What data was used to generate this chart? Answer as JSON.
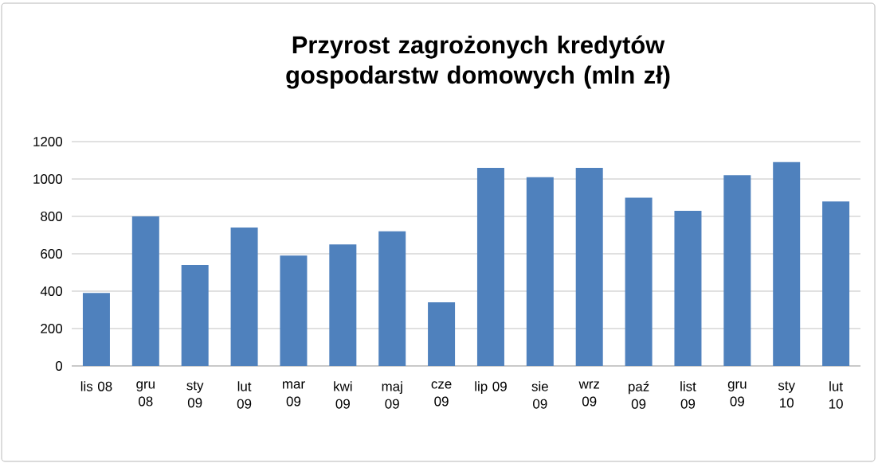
{
  "chart_data": {
    "type": "bar",
    "title": "Przyrost zagrożonych kredytów gospodarstw domowych (mln zł)",
    "categories": [
      "lis 08",
      "gru 08",
      "sty 09",
      "lut 09",
      "mar 09",
      "kwi 09",
      "maj 09",
      "cze 09",
      "lip 09",
      "sie 09",
      "wrz 09",
      "paź 09",
      "list 09",
      "gru 09",
      "sty 10",
      "lut 10"
    ],
    "values": [
      390,
      800,
      540,
      740,
      590,
      650,
      720,
      340,
      1060,
      1010,
      1060,
      900,
      830,
      1020,
      1090,
      880
    ],
    "color": "#4f81bd",
    "ylim": [
      0,
      1200
    ],
    "yticks": [
      0,
      200,
      400,
      600,
      800,
      1000,
      1200
    ],
    "grid": "y"
  }
}
